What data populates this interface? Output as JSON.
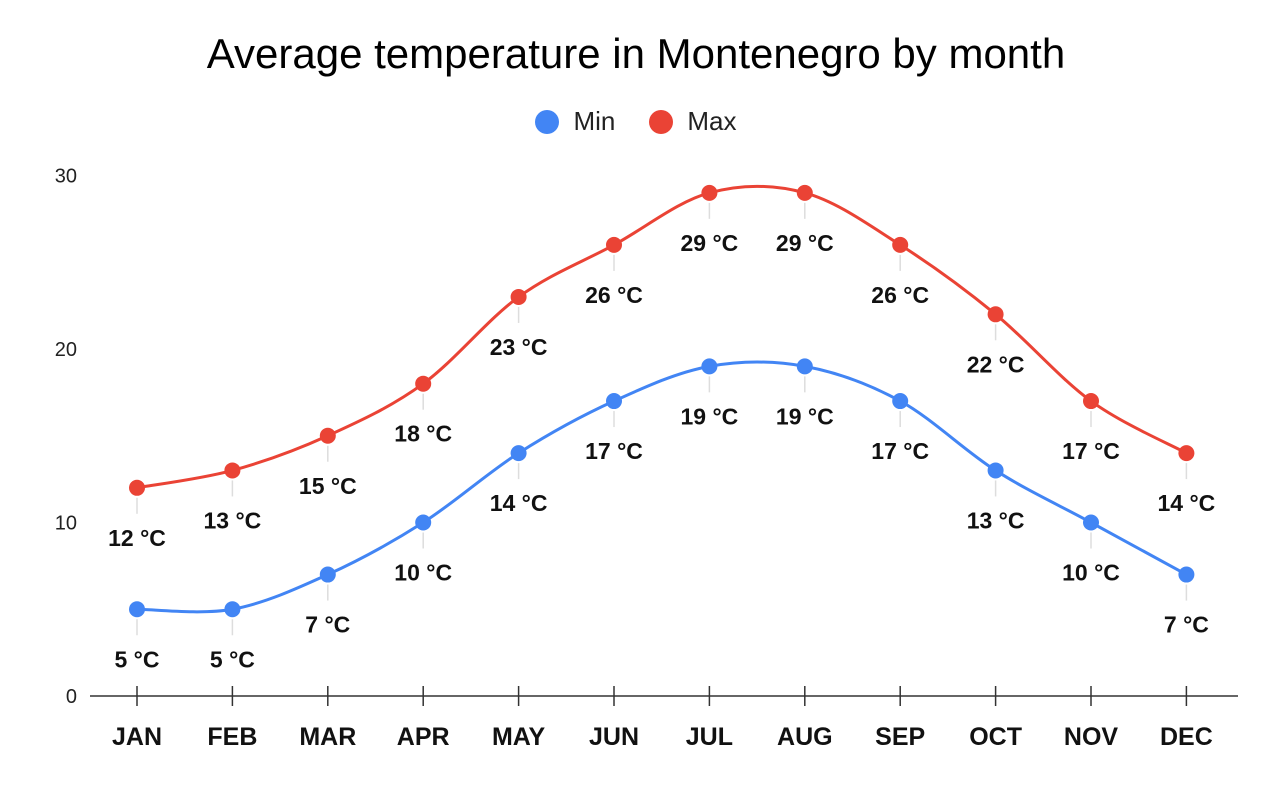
{
  "chart_data": {
    "type": "line",
    "title": "Average temperature in Montenegro by month",
    "categories": [
      "JAN",
      "FEB",
      "MAR",
      "APR",
      "MAY",
      "JUN",
      "JUL",
      "AUG",
      "SEP",
      "OCT",
      "NOV",
      "DEC"
    ],
    "series": [
      {
        "name": "Min",
        "color": "#4285f4",
        "values": [
          5,
          5,
          7,
          10,
          14,
          17,
          19,
          19,
          17,
          13,
          10,
          7
        ],
        "labels": [
          "5 °C",
          "5 °C",
          "7 °C",
          "10 °C",
          "14 °C",
          "17 °C",
          "19 °C",
          "19 °C",
          "17 °C",
          "13 °C",
          "10 °C",
          "7 °C"
        ]
      },
      {
        "name": "Max",
        "color": "#ea4335",
        "values": [
          12,
          13,
          15,
          18,
          23,
          26,
          29,
          29,
          26,
          22,
          17,
          14
        ],
        "labels": [
          "12 °C",
          "13 °C",
          "15 °C",
          "18 °C",
          "23 °C",
          "26 °C",
          "29 °C",
          "29 °C",
          "26 °C",
          "22 °C",
          "17 °C",
          "14 °C"
        ]
      }
    ],
    "yticks": [
      "0",
      "10",
      "20",
      "30"
    ],
    "ylim": [
      0,
      30
    ],
    "grid": false,
    "legend_position": "top-center"
  }
}
